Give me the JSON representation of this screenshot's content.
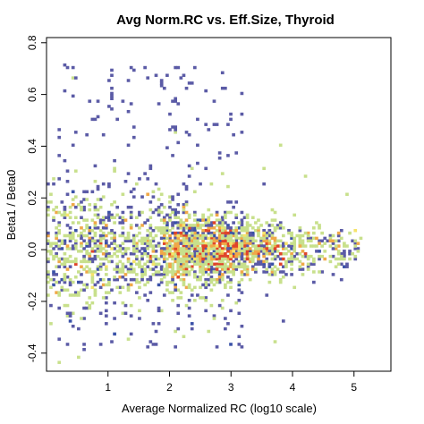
{
  "chart_data": {
    "type": "heatmap",
    "title": "Avg Norm.RC vs. Eff.Size, Thyroid",
    "xlabel": "Average Normalized RC (log10 scale)",
    "ylabel": "Beta1 / Beta0",
    "xlim": [
      0.0,
      5.6
    ],
    "ylim": [
      -0.47,
      0.82
    ],
    "x_ticks": [
      1,
      2,
      3,
      4,
      5
    ],
    "x_tick_labels": [
      "1",
      "2",
      "3",
      "4",
      "5"
    ],
    "y_ticks": [
      -0.4,
      -0.2,
      0.0,
      0.2,
      0.4,
      0.6,
      0.8
    ],
    "y_tick_labels": [
      "-0.4",
      "-0.2",
      "0.0",
      "0.2",
      "0.4",
      "0.6",
      "0.8"
    ],
    "grid": false,
    "legend": "none",
    "density_colors": [
      "#5b5ba6",
      "#3a52a8",
      "#6fc0a0",
      "#c8e08c",
      "#f5e36a",
      "#f0a848",
      "#e0452a"
    ],
    "cells": {
      "bin_width_x": 0.045,
      "bin_height_y": 0.01,
      "description": "2D density of genes: concentrated around y=0, widest spread at low x, high density near x 2.5-3.8"
    }
  }
}
